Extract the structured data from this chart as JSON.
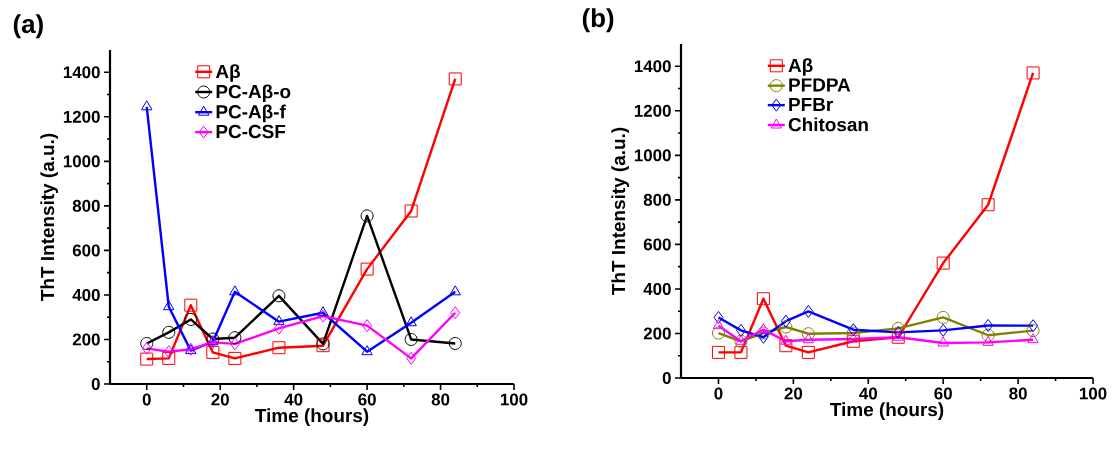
{
  "chart_data": [
    {
      "type": "line",
      "title": "(a)",
      "xlabel": "Time (hours)",
      "ylabel": "ThT Intensity (a.u.)",
      "x": [
        0,
        6,
        12,
        18,
        24,
        36,
        48,
        60,
        72,
        84
      ],
      "xlim": [
        -10,
        100
      ],
      "ylim": [
        0,
        1500
      ],
      "xticks": [
        0,
        20,
        40,
        60,
        80,
        100
      ],
      "yticks": [
        0,
        200,
        400,
        600,
        800,
        1000,
        1200,
        1400
      ],
      "grid": false,
      "legend": "top left",
      "series": [
        {
          "name": "Aβ",
          "color": "#ff0000",
          "marker": "square",
          "values": [
            112,
            115,
            354,
            142,
            115,
            163,
            172,
            516,
            777,
            1370
          ]
        },
        {
          "name": "PC-Aβ-o",
          "color": "#000000",
          "marker": "circle",
          "values": [
            182,
            232,
            290,
            202,
            208,
            396,
            180,
            755,
            200,
            182
          ]
        },
        {
          "name": "PC-Aβ-f",
          "color": "#0000ff",
          "marker": "triangle",
          "values": [
            1245,
            347,
            150,
            190,
            414,
            280,
            320,
            145,
            275,
            414
          ]
        },
        {
          "name": "PC-CSF",
          "color": "#ff00ff",
          "marker": "diamond",
          "values": [
            160,
            145,
            156,
            187,
            180,
            250,
            305,
            262,
            115,
            320
          ]
        }
      ]
    },
    {
      "type": "line",
      "title": "(b)",
      "xlabel": "Time (hours)",
      "ylabel": "ThT Intensity (a.u.)",
      "x": [
        0,
        6,
        12,
        18,
        24,
        36,
        48,
        60,
        72,
        84
      ],
      "xlim": [
        -10,
        100
      ],
      "ylim": [
        0,
        1500
      ],
      "xticks": [
        0,
        20,
        40,
        60,
        80,
        100
      ],
      "yticks": [
        0,
        200,
        400,
        600,
        800,
        1000,
        1200,
        1400
      ],
      "grid": false,
      "legend": "top left",
      "series": [
        {
          "name": "Aβ",
          "color": "#ff0000",
          "marker": "square",
          "values": [
            115,
            115,
            356,
            145,
            115,
            165,
            183,
            516,
            778,
            1370
          ]
        },
        {
          "name": "PFDPA",
          "color": "#808000",
          "marker": "circle",
          "values": [
            202,
            165,
            202,
            229,
            199,
            202,
            223,
            272,
            192,
            213
          ]
        },
        {
          "name": "PFBr",
          "color": "#0000ff",
          "marker": "diamond",
          "values": [
            272,
            214,
            183,
            255,
            299,
            217,
            205,
            214,
            236,
            235
          ]
        },
        {
          "name": "Chitosan",
          "color": "#ff00ff",
          "marker": "triangle",
          "values": [
            235,
            165,
            217,
            165,
            172,
            175,
            183,
            157,
            160,
            172
          ]
        }
      ]
    }
  ]
}
